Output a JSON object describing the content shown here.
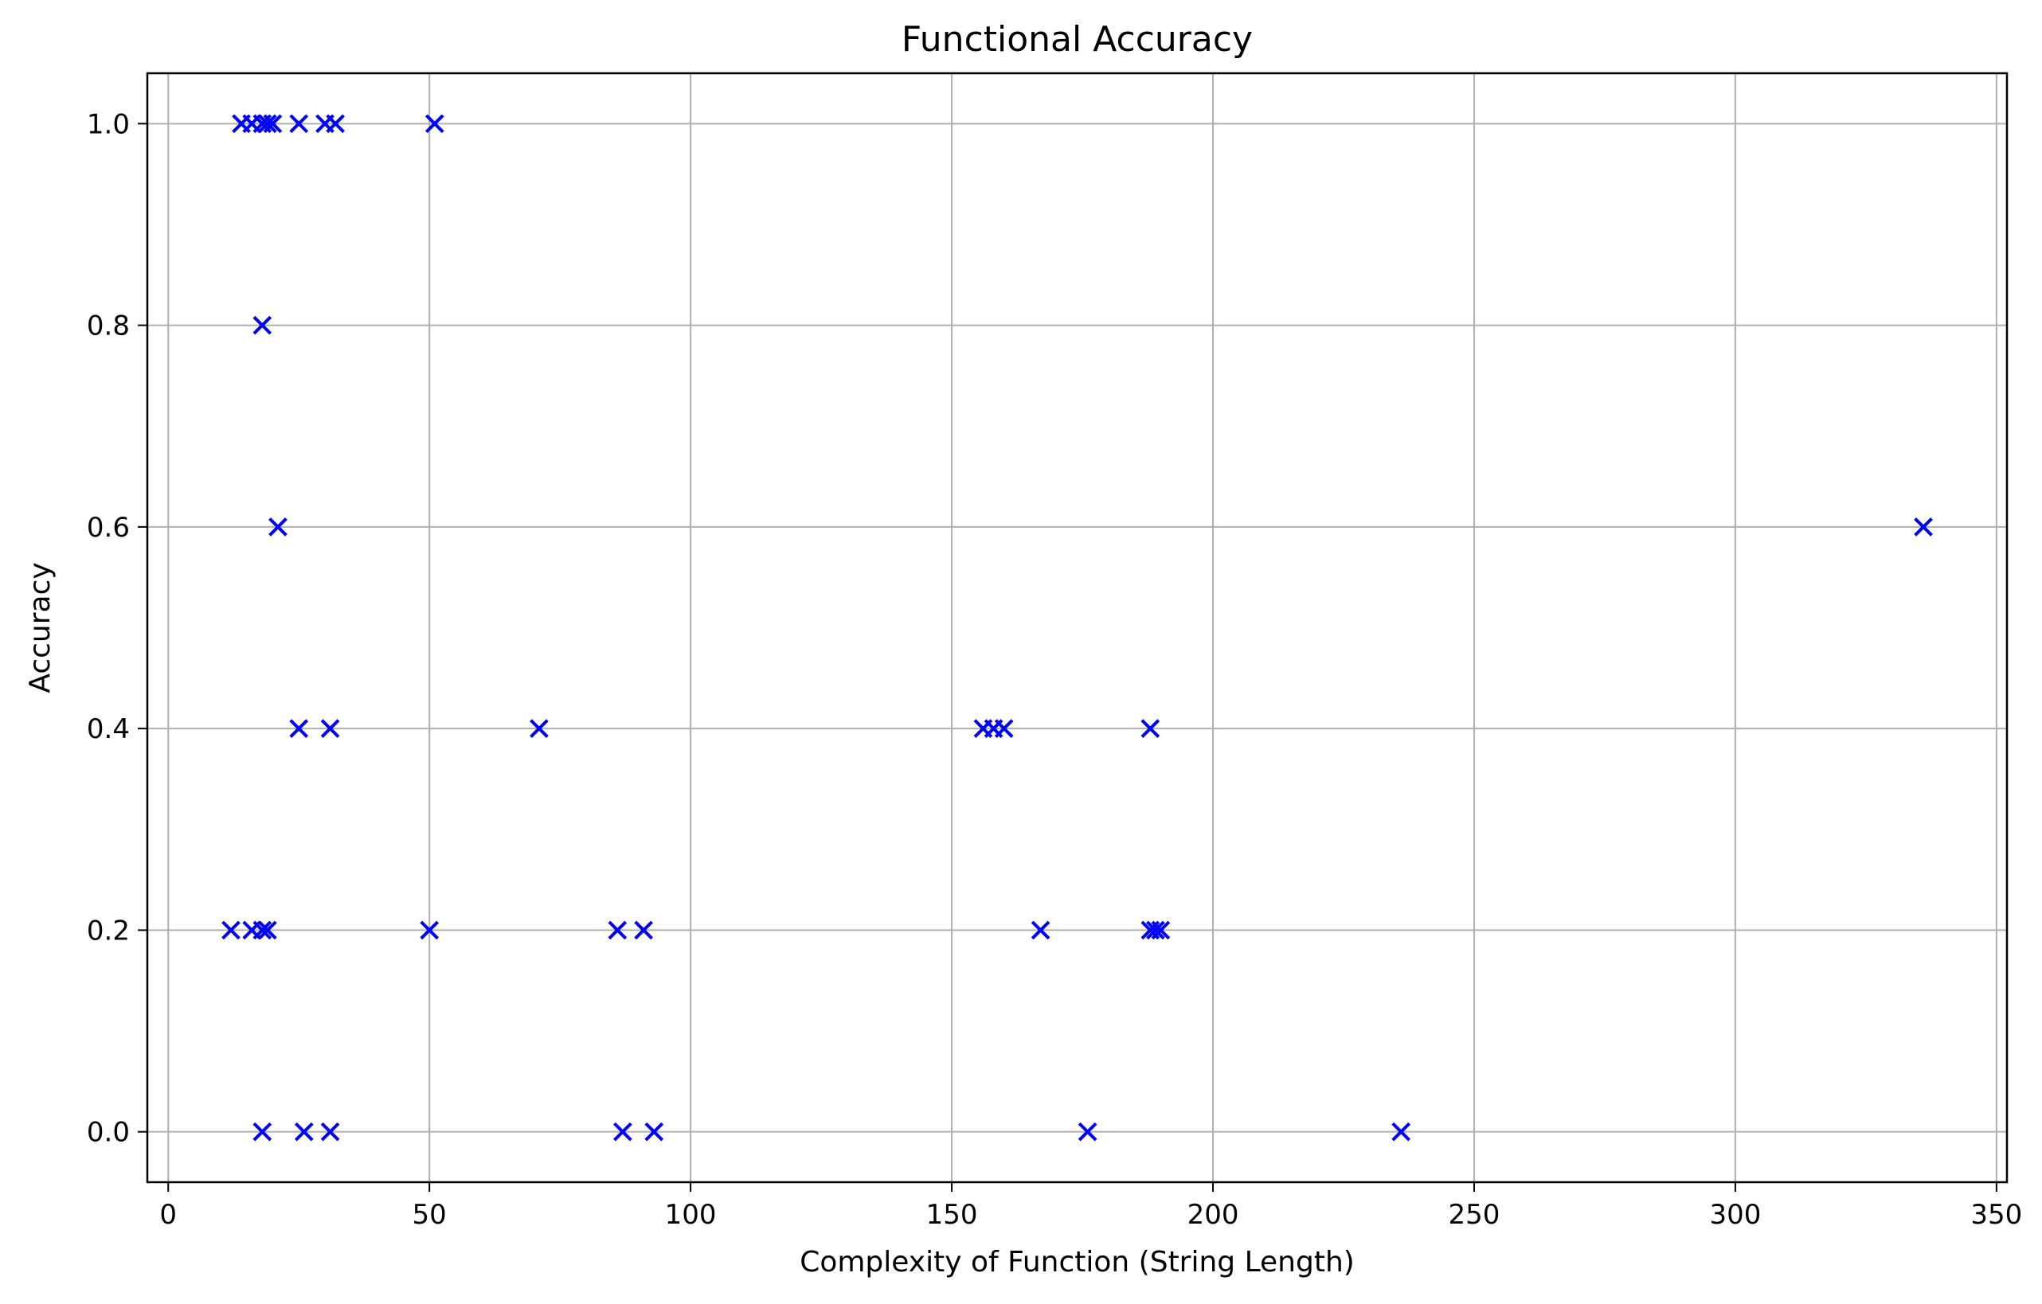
{
  "chart_data": {
    "type": "scatter",
    "title": "Functional Accuracy",
    "xlabel": "Complexity of Function (String Length)",
    "ylabel": "Accuracy",
    "xlim": [
      -4,
      352
    ],
    "ylim": [
      -0.05,
      1.05
    ],
    "xticks": [
      0,
      50,
      100,
      150,
      200,
      250,
      300,
      350
    ],
    "xtick_labels": [
      "0",
      "50",
      "100",
      "150",
      "200",
      "250",
      "300",
      "350"
    ],
    "yticks": [
      0.0,
      0.2,
      0.4,
      0.6,
      0.8,
      1.0
    ],
    "ytick_labels": [
      "0.0",
      "0.2",
      "0.4",
      "0.6",
      "0.8",
      "1.0"
    ],
    "grid": true,
    "marker": "x",
    "color": "#0000ff",
    "points": [
      {
        "x": 14,
        "y": 1.0
      },
      {
        "x": 16,
        "y": 1.0
      },
      {
        "x": 18,
        "y": 1.0
      },
      {
        "x": 19,
        "y": 1.0
      },
      {
        "x": 20,
        "y": 1.0
      },
      {
        "x": 25,
        "y": 1.0
      },
      {
        "x": 30,
        "y": 1.0
      },
      {
        "x": 32,
        "y": 1.0
      },
      {
        "x": 51,
        "y": 1.0
      },
      {
        "x": 18,
        "y": 0.8
      },
      {
        "x": 21,
        "y": 0.6
      },
      {
        "x": 336,
        "y": 0.6
      },
      {
        "x": 25,
        "y": 0.4
      },
      {
        "x": 31,
        "y": 0.4
      },
      {
        "x": 71,
        "y": 0.4
      },
      {
        "x": 156,
        "y": 0.4
      },
      {
        "x": 158,
        "y": 0.4
      },
      {
        "x": 160,
        "y": 0.4
      },
      {
        "x": 188,
        "y": 0.4
      },
      {
        "x": 12,
        "y": 0.2
      },
      {
        "x": 16,
        "y": 0.2
      },
      {
        "x": 18,
        "y": 0.2
      },
      {
        "x": 19,
        "y": 0.2
      },
      {
        "x": 50,
        "y": 0.2
      },
      {
        "x": 86,
        "y": 0.2
      },
      {
        "x": 91,
        "y": 0.2
      },
      {
        "x": 167,
        "y": 0.2
      },
      {
        "x": 188,
        "y": 0.2
      },
      {
        "x": 189,
        "y": 0.2
      },
      {
        "x": 190,
        "y": 0.2
      },
      {
        "x": 18,
        "y": 0.0
      },
      {
        "x": 26,
        "y": 0.0
      },
      {
        "x": 31,
        "y": 0.0
      },
      {
        "x": 87,
        "y": 0.0
      },
      {
        "x": 93,
        "y": 0.0
      },
      {
        "x": 176,
        "y": 0.0
      },
      {
        "x": 236,
        "y": 0.0
      }
    ]
  }
}
